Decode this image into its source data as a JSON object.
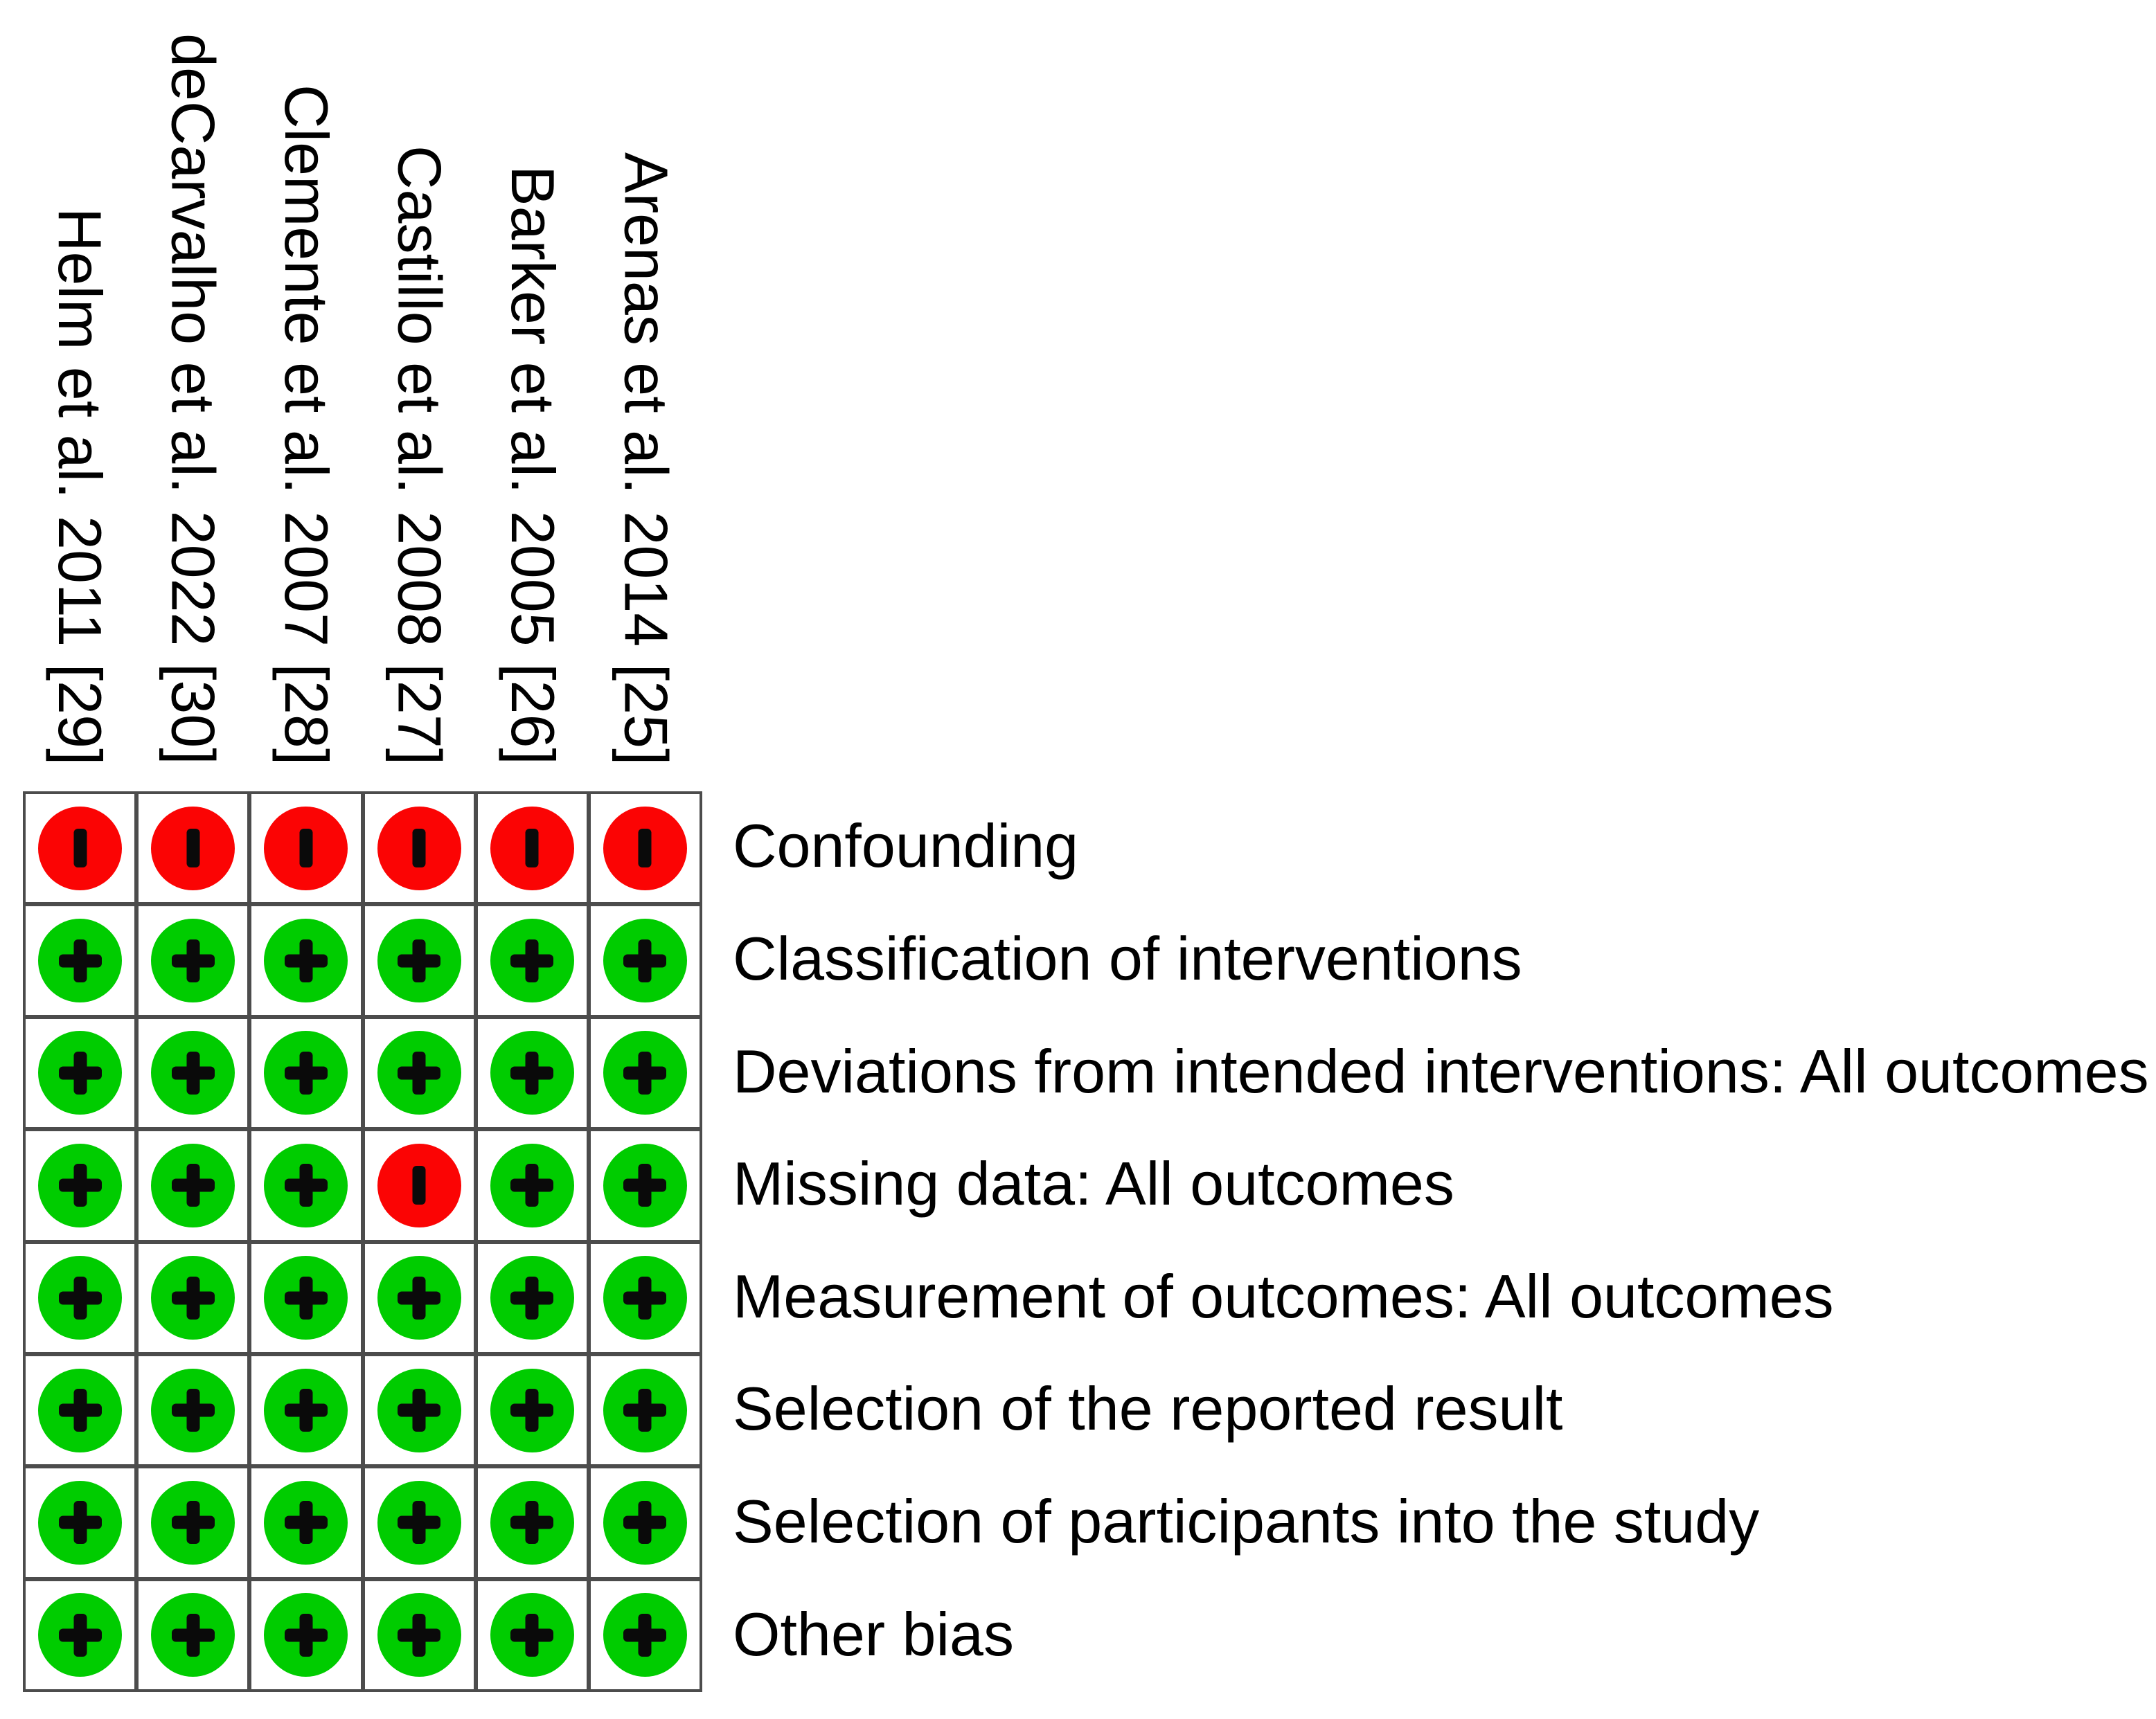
{
  "chart_data": {
    "type": "heatmap",
    "description": "Risk of bias summary grid: traffic-light judgments per study and bias domain",
    "studies": [
      "Helm et al. 2011 [29]",
      "deCarvalho et al. 2022 [30]",
      "Clemente et al. 2007 [28]",
      "Castillo et al. 2008 [27]",
      "Barker et al. 2005 [26]",
      "Arenas et al. 2014 [25]"
    ],
    "bias_domains": [
      "Confounding",
      "Classification of interventions",
      "Deviations from intended interventions: All outcomes",
      "Missing data: All outcomes",
      "Measurement of outcomes: All outcomes",
      "Selection of the reported result",
      "Selection of participants into the study",
      "Other bias"
    ],
    "judgments": [
      [
        "-",
        "-",
        "-",
        "-",
        "-",
        "-"
      ],
      [
        "+",
        "+",
        "+",
        "+",
        "+",
        "+"
      ],
      [
        "+",
        "+",
        "+",
        "+",
        "+",
        "+"
      ],
      [
        "+",
        "+",
        "+",
        "-",
        "+",
        "+"
      ],
      [
        "+",
        "+",
        "+",
        "+",
        "+",
        "+"
      ],
      [
        "+",
        "+",
        "+",
        "+",
        "+",
        "+"
      ],
      [
        "+",
        "+",
        "+",
        "+",
        "+",
        "+"
      ],
      [
        "+",
        "+",
        "+",
        "+",
        "+",
        "+"
      ]
    ],
    "symbols": {
      "plus": "+",
      "minus": "-"
    },
    "colors": {
      "plus_circle": "#00cc00",
      "minus_circle": "#fb0404",
      "symbol": "#0a0a0a",
      "grid_line": "#4c4c4c",
      "background": "#ffffff",
      "text": "#000000"
    },
    "layout_hints": {
      "grid_rows": 8,
      "grid_cols": 6,
      "column_headers_rotated": true,
      "row_labels_position": "right",
      "legend_position": "none"
    }
  }
}
